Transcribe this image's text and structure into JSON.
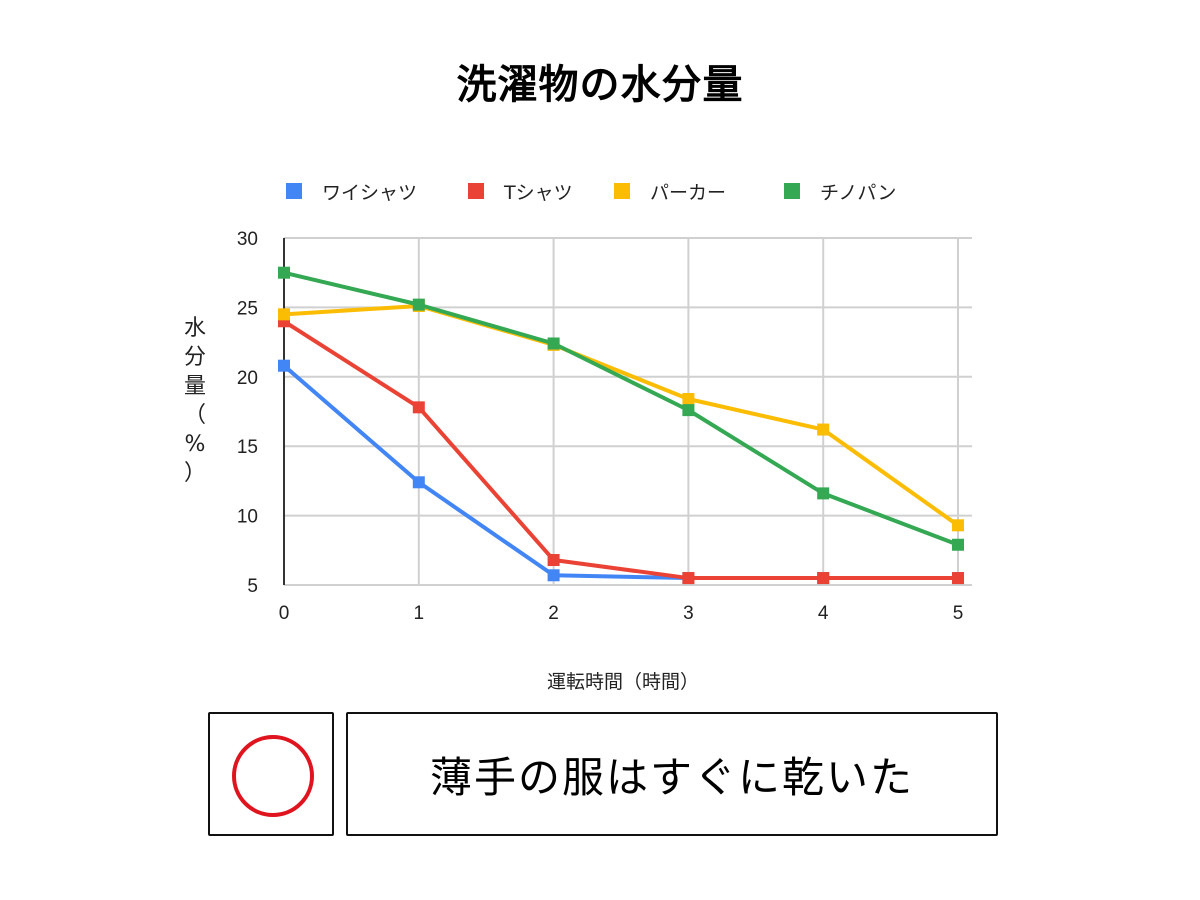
{
  "title": "洗濯物の水分量",
  "chart_data": {
    "type": "line",
    "title": "洗濯物の水分量",
    "xlabel": "運転時間（時間）",
    "ylabel": "水分量（%）",
    "x": [
      0,
      1,
      2,
      3,
      4,
      5
    ],
    "xlim": [
      0,
      5
    ],
    "ylim": [
      5,
      30
    ],
    "yticks": [
      5,
      10,
      15,
      20,
      25,
      30
    ],
    "grid": true,
    "legend_position": "top",
    "marker": "square",
    "series": [
      {
        "name": "ワイシャツ",
        "color": "#4285f4",
        "values": [
          20.8,
          12.4,
          5.7,
          5.5,
          5.5,
          5.5
        ]
      },
      {
        "name": "Tシャツ",
        "color": "#ea4335",
        "values": [
          24.0,
          17.8,
          6.8,
          5.5,
          5.5,
          5.5
        ]
      },
      {
        "name": "パーカー",
        "color": "#fbbc04",
        "values": [
          24.5,
          25.1,
          22.3,
          18.4,
          16.2,
          9.3
        ]
      },
      {
        "name": "チノパン",
        "color": "#34a853",
        "values": [
          27.5,
          25.2,
          22.4,
          17.6,
          11.6,
          7.9
        ]
      }
    ]
  },
  "evaluation": {
    "mark": "circle",
    "mark_color": "#e0141e",
    "comment": "薄手の服はすぐに乾いた"
  }
}
